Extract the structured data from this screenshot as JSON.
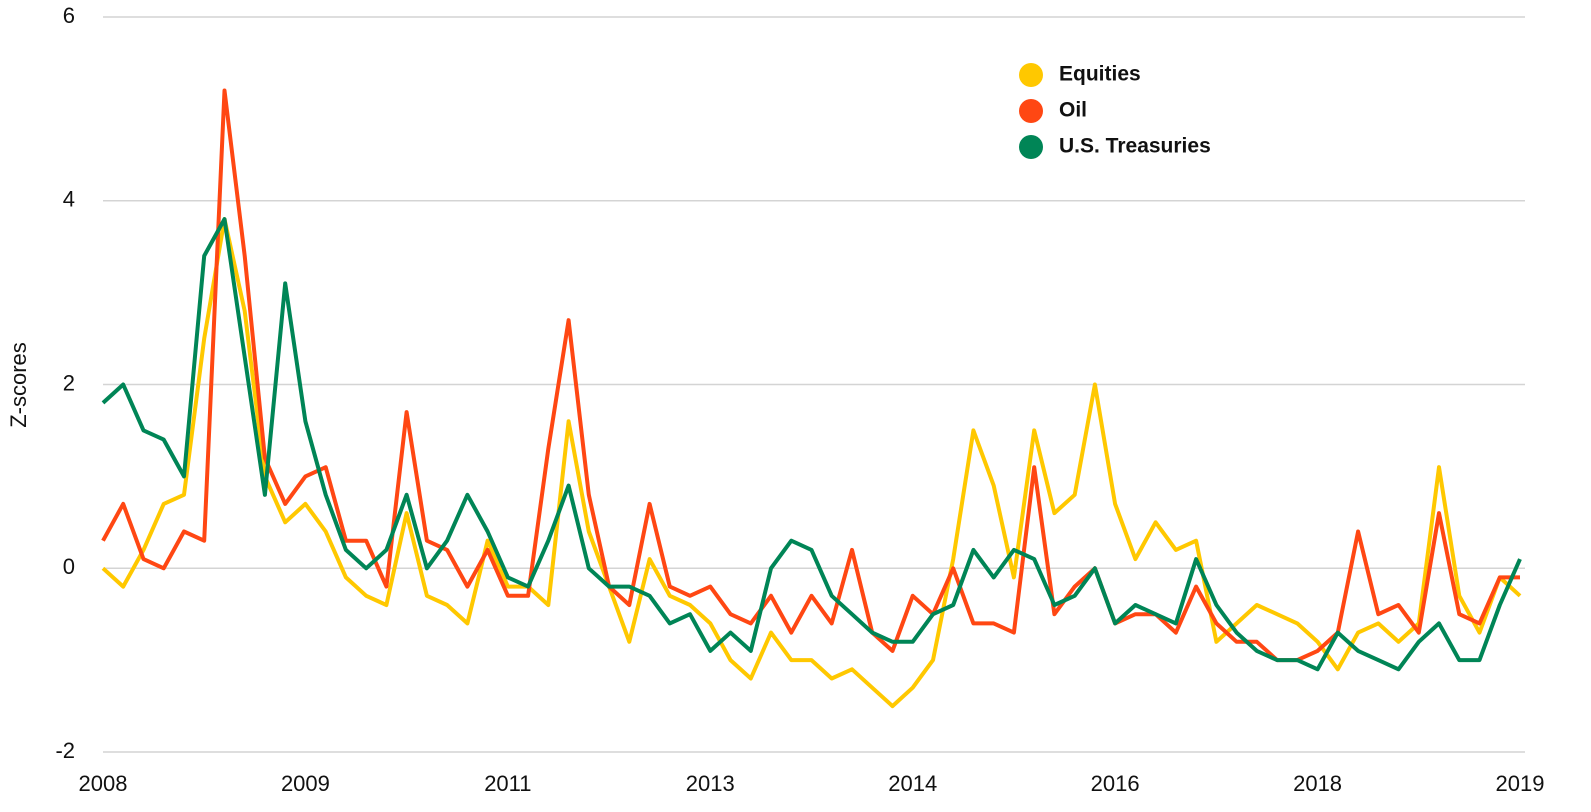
{
  "chart_data": {
    "type": "line",
    "y_label": "Z-scores",
    "categories": [
      "2008",
      null,
      null,
      null,
      null,
      null,
      null,
      null,
      null,
      null,
      "2009",
      null,
      null,
      null,
      null,
      null,
      null,
      null,
      null,
      null,
      "2011",
      null,
      null,
      null,
      null,
      null,
      null,
      null,
      null,
      null,
      "2013",
      null,
      null,
      null,
      null,
      null,
      null,
      null,
      null,
      null,
      "2014",
      null,
      null,
      null,
      null,
      null,
      null,
      null,
      null,
      null,
      "2016",
      null,
      null,
      null,
      null,
      null,
      null,
      null,
      null,
      null,
      "2018",
      null,
      null,
      null,
      null,
      null,
      null,
      null,
      null,
      null,
      "2019"
    ],
    "series": [
      {
        "name": "Equities",
        "color": "#ffc800",
        "values": [
          0,
          -0.2,
          0.2,
          0.7,
          0.8,
          2.5,
          3.8,
          2.8,
          1.0,
          0.5,
          0.7,
          0.4,
          -0.1,
          -0.3,
          -0.4,
          0.6,
          -0.3,
          -0.4,
          -0.6,
          0.3,
          -0.2,
          -0.2,
          -0.4,
          1.6,
          0.4,
          -0.2,
          -0.8,
          0.1,
          -0.3,
          -0.4,
          -0.6,
          -1.0,
          -1.2,
          -0.7,
          -1.0,
          -1.0,
          -1.2,
          -1.1,
          -1.3,
          -1.5,
          -1.3,
          -1.0,
          0.1,
          1.5,
          0.9,
          -0.1,
          1.5,
          0.6,
          0.8,
          2.0,
          0.7,
          0.1,
          0.5,
          0.2,
          0.3,
          -0.8,
          -0.6,
          -0.4,
          -0.5,
          -0.6,
          -0.8,
          -1.1,
          -0.7,
          -0.6,
          -0.8,
          -0.6,
          1.1,
          -0.3,
          -0.7,
          -0.1,
          -0.3
        ]
      },
      {
        "name": "Oil",
        "color": "#ff4713",
        "values": [
          0.3,
          0.7,
          0.1,
          0.0,
          0.4,
          0.3,
          5.2,
          3.4,
          1.2,
          0.7,
          1.0,
          1.1,
          0.3,
          0.3,
          -0.2,
          1.7,
          0.3,
          0.2,
          -0.2,
          0.2,
          -0.3,
          -0.3,
          1.3,
          2.7,
          0.8,
          -0.2,
          -0.4,
          0.7,
          -0.2,
          -0.3,
          -0.2,
          -0.5,
          -0.6,
          -0.3,
          -0.7,
          -0.3,
          -0.6,
          0.2,
          -0.7,
          -0.9,
          -0.3,
          -0.5,
          0.0,
          -0.6,
          -0.6,
          -0.7,
          1.1,
          -0.5,
          -0.2,
          0.0,
          -0.6,
          -0.5,
          -0.5,
          -0.7,
          -0.2,
          -0.6,
          -0.8,
          -0.8,
          -1.0,
          -1.0,
          -0.9,
          -0.7,
          0.4,
          -0.5,
          -0.4,
          -0.7,
          0.6,
          -0.5,
          -0.6,
          -0.1,
          -0.1
        ]
      },
      {
        "name": "U.S. Treasuries",
        "color": "#008556",
        "values": [
          1.8,
          2.0,
          1.5,
          1.4,
          1.0,
          3.4,
          3.8,
          2.3,
          0.8,
          3.1,
          1.6,
          0.8,
          0.2,
          0.0,
          0.2,
          0.8,
          0.0,
          0.3,
          0.8,
          0.4,
          -0.1,
          -0.2,
          0.3,
          0.9,
          0.0,
          -0.2,
          -0.2,
          -0.3,
          -0.6,
          -0.5,
          -0.9,
          -0.7,
          -0.9,
          0.0,
          0.3,
          0.2,
          -0.3,
          -0.5,
          -0.7,
          -0.8,
          -0.8,
          -0.5,
          -0.4,
          0.2,
          -0.1,
          0.2,
          0.1,
          -0.4,
          -0.3,
          0.0,
          -0.6,
          -0.4,
          -0.5,
          -0.6,
          0.1,
          -0.4,
          -0.7,
          -0.9,
          -1.0,
          -1.0,
          -1.1,
          -0.7,
          -0.9,
          -1.0,
          -1.1,
          -0.8,
          -0.6,
          -1.0,
          -1.0,
          -0.4,
          0.1
        ]
      }
    ],
    "ylim": [
      -2,
      6
    ],
    "yticks": [
      -2,
      0,
      2,
      4,
      6
    ],
    "grid": true,
    "legend": "top-right"
  }
}
